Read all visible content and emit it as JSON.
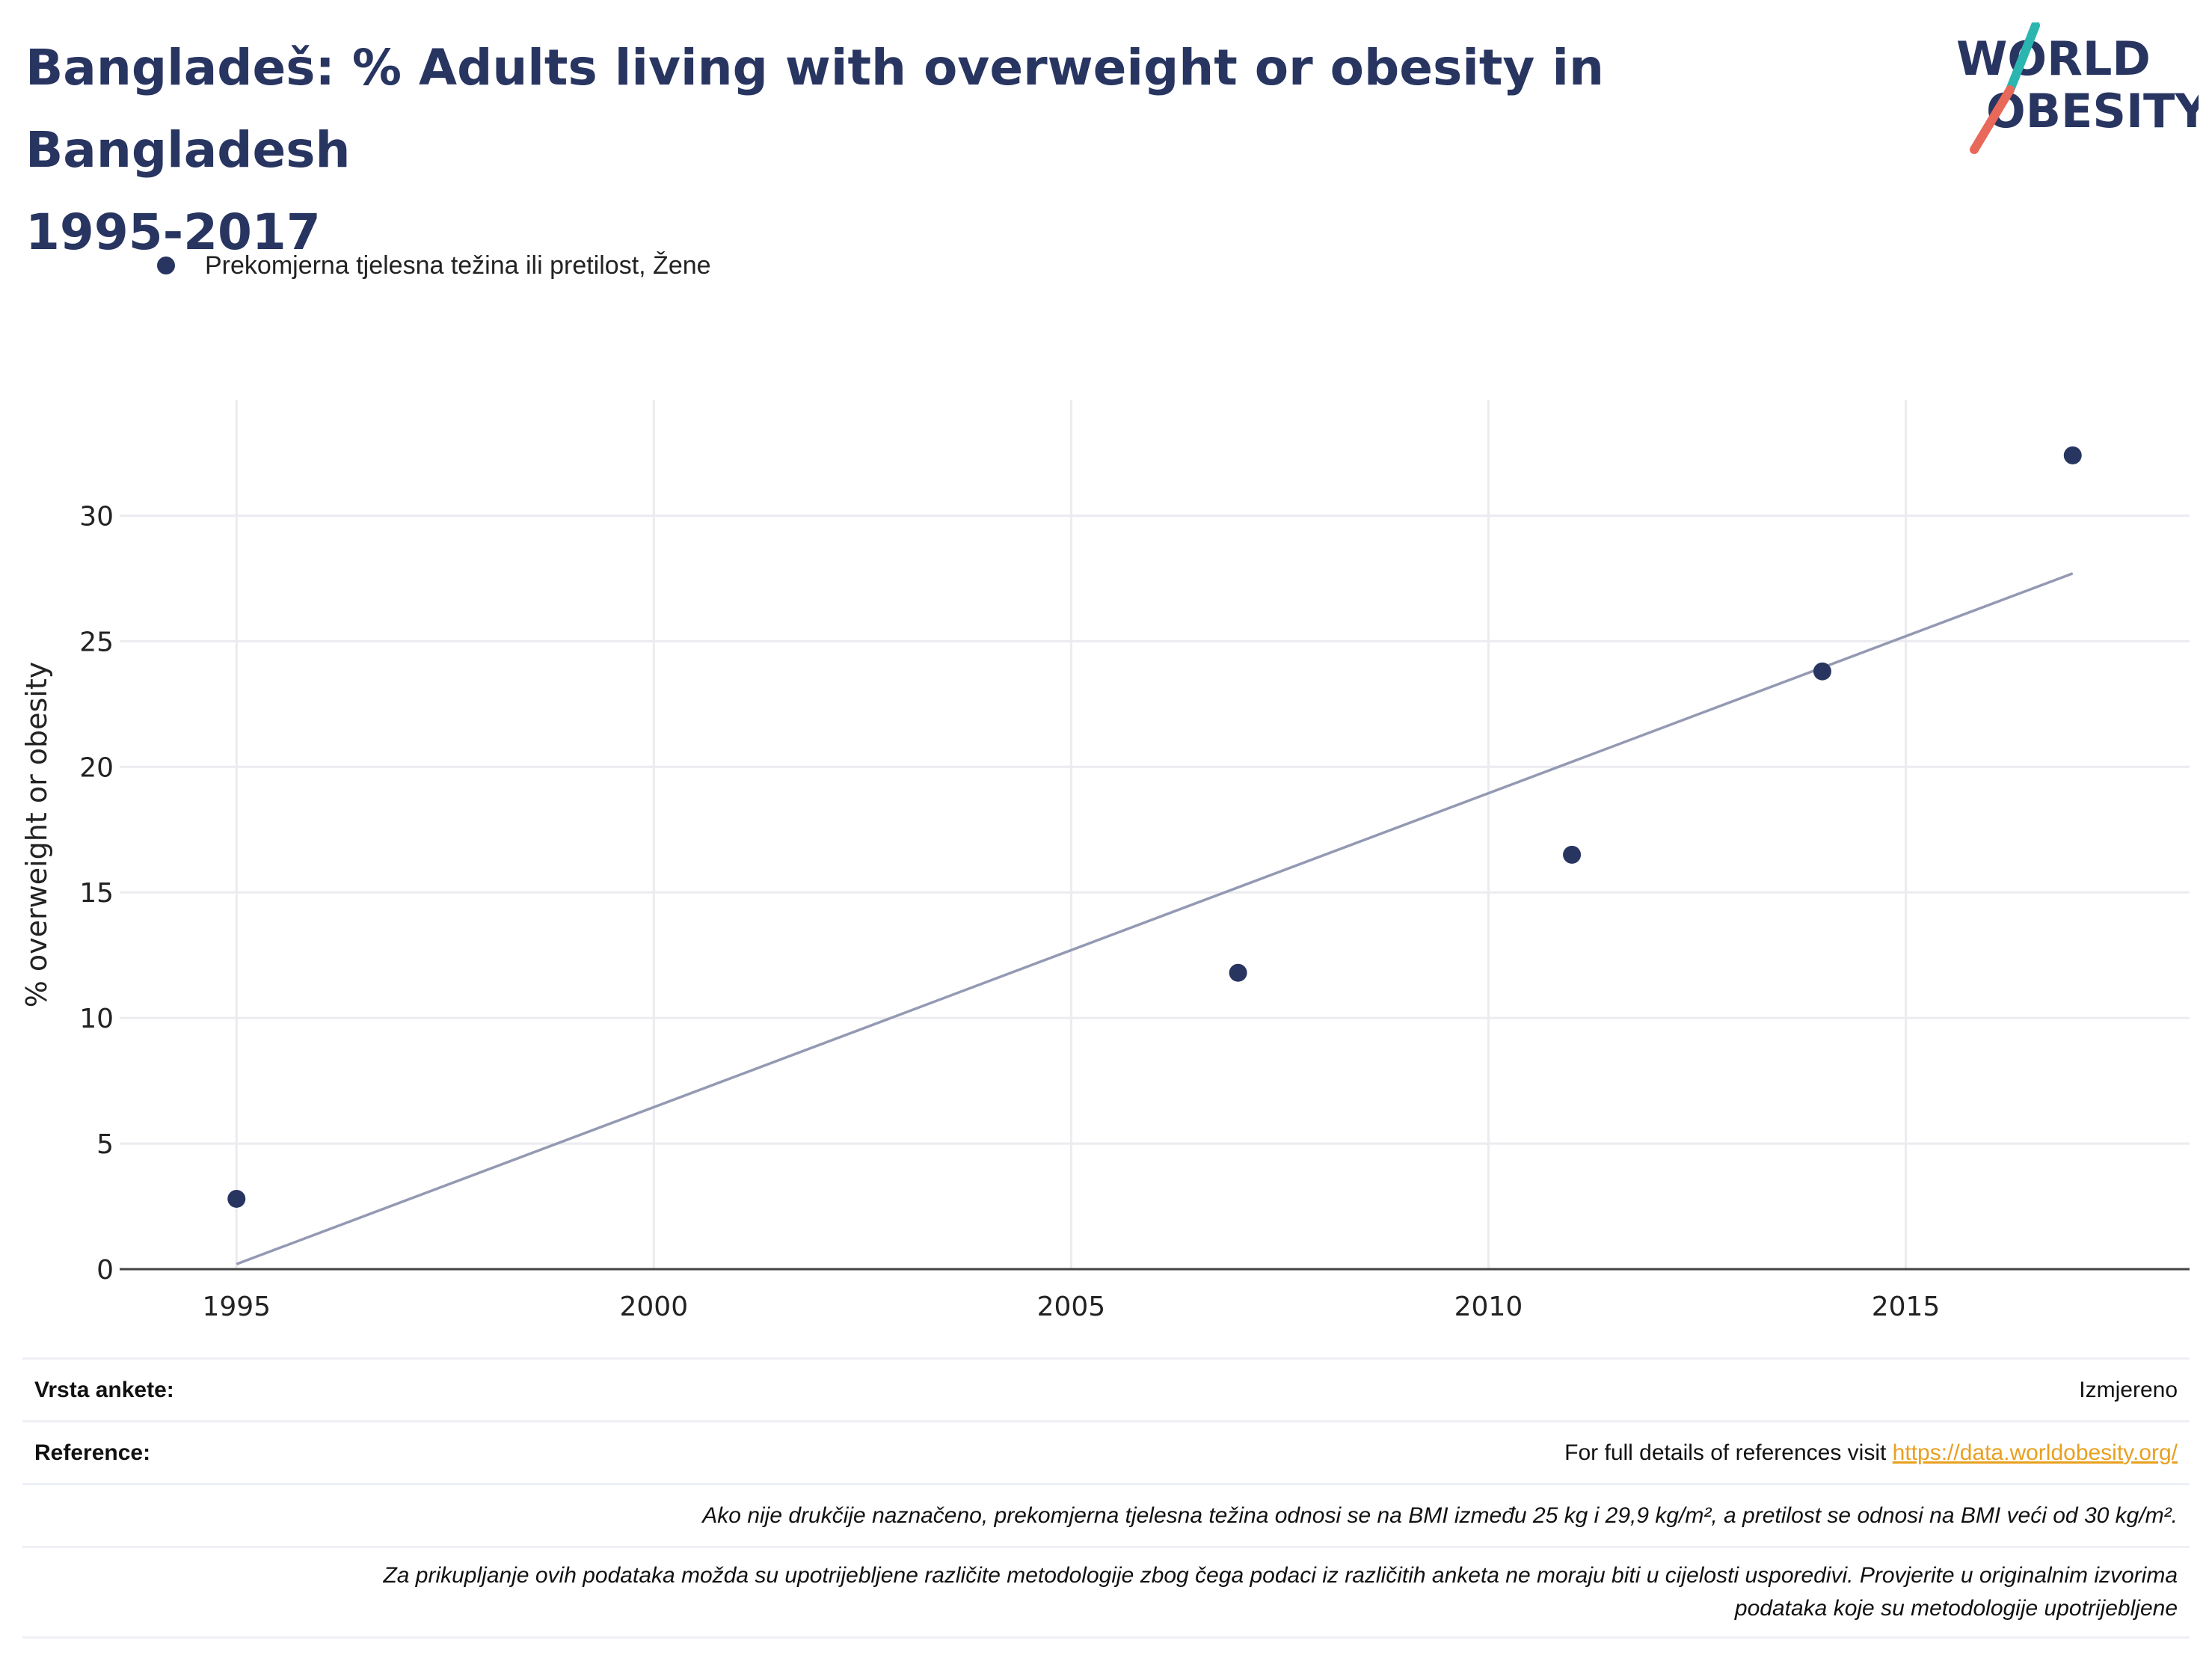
{
  "title_line1": "Bangladeš: % Adults living with overweight or obesity in Bangladesh",
  "title_line2": "1995-2017",
  "logo": {
    "line1": "WORLD",
    "line2": "OBESITY",
    "colors": {
      "text": "#283561",
      "teal": "#2bb5b0",
      "coral": "#e8685a"
    }
  },
  "legend": {
    "label": "Prekomjerna tjelesna težina ili pretilost, Žene",
    "color": "#283561"
  },
  "chart_data": {
    "type": "scatter",
    "series": [
      {
        "name": "Prekomjerna tjelesna težina ili pretilost, Žene",
        "color": "#283561",
        "points": [
          {
            "x": 1995,
            "y": 2.8
          },
          {
            "x": 2007,
            "y": 11.8
          },
          {
            "x": 2011,
            "y": 16.5
          },
          {
            "x": 2014,
            "y": 23.8
          },
          {
            "x": 2017,
            "y": 32.4
          }
        ]
      }
    ],
    "trendline": {
      "color": "#9499b3",
      "from": {
        "x": 1995,
        "y": 0.2
      },
      "to": {
        "x": 2017,
        "y": 27.7
      }
    },
    "xlabel": "",
    "ylabel": "% overweight or obesity",
    "xlim": [
      1993.6,
      2018.4
    ],
    "ylim": [
      0,
      34.6
    ],
    "xticks": [
      1995,
      2000,
      2005,
      2010,
      2015
    ],
    "yticks": [
      0,
      5,
      10,
      15,
      20,
      25,
      30
    ],
    "grid": true,
    "legend_position": "top-left"
  },
  "footer": {
    "survey_label": "Vrsta ankete:",
    "survey_value": "Izmjereno",
    "ref_label": "Reference:",
    "ref_text": "For full details of references visit ",
    "ref_link": "https://data.worldobesity.org/",
    "note1": "Ako nije drukčije naznačeno, prekomjerna tjelesna težina odnosi se na BMI između 25 kg i 29,9 kg/m², a pretilost se odnosi na BMI veći od 30 kg/m².",
    "note2_line1": "Za prikupljanje ovih podataka možda su upotrijebljene različite metodologije zbog čega podaci iz različitih anketa ne moraju biti u cijelosti usporedivi. Provjerite u originalnim izvorima",
    "note2_line2": "podataka koje su metodologije upotrijebljene"
  }
}
